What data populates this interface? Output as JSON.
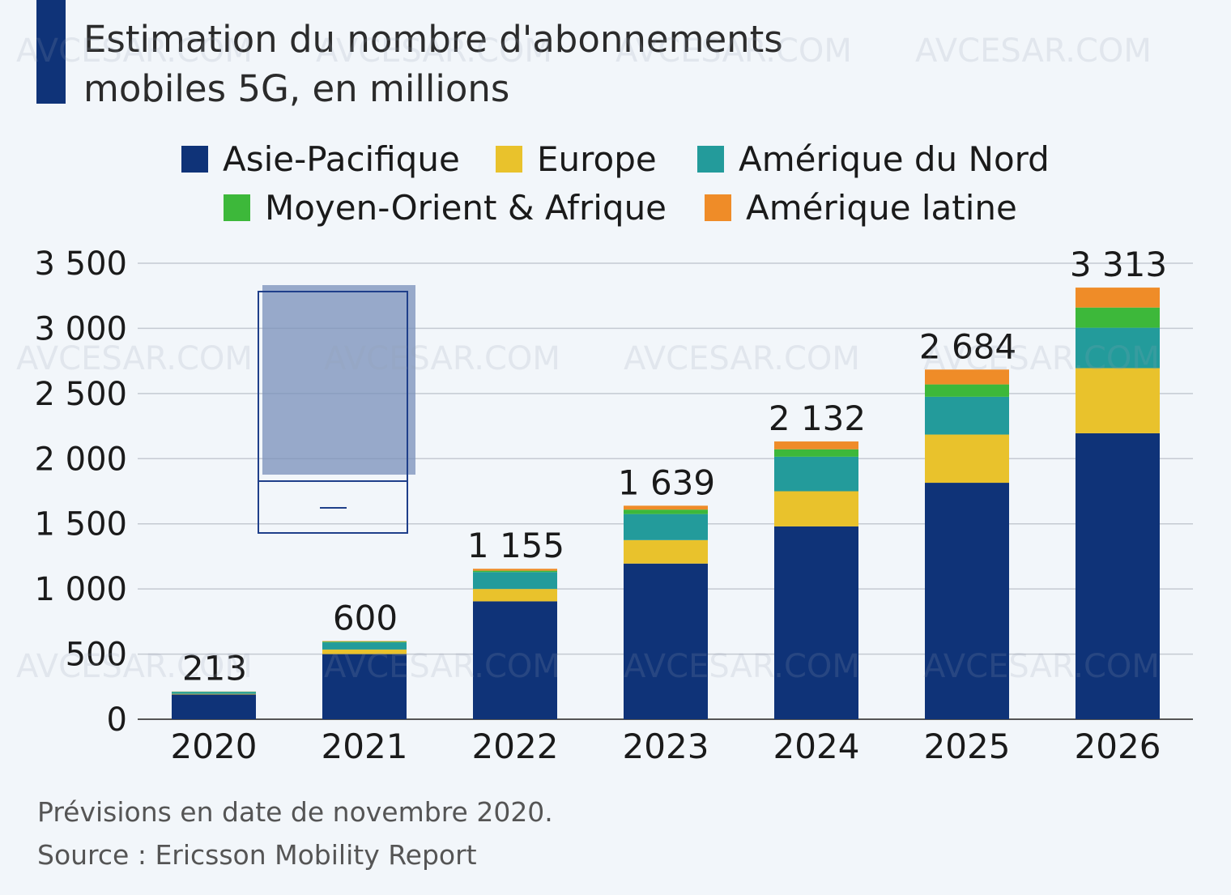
{
  "header": {
    "title_line1": "Estimation du nombre d'abonnements",
    "title_line2": "mobiles 5G, en millions"
  },
  "colors": {
    "title_bar": "#0f3378",
    "asia_pacific": "#0f3378",
    "europe": "#e9c22c",
    "north_america": "#239b9b",
    "mea": "#3db83a",
    "latin_america": "#ef8c28",
    "grid": "#c5cad2",
    "axis": "#555555"
  },
  "legend": [
    {
      "label": "Asie-Pacifique",
      "color": "#0f3378"
    },
    {
      "label": "Europe",
      "color": "#e9c22c"
    },
    {
      "label": "Amérique du Nord",
      "color": "#239b9b"
    },
    {
      "label": "Moyen-Orient & Afrique",
      "color": "#3db83a"
    },
    {
      "label": "Amérique latine",
      "color": "#ef8c28"
    }
  ],
  "chart_data": {
    "type": "bar",
    "stacked": true,
    "title": "Estimation du nombre d'abonnements mobiles 5G, en millions",
    "xlabel": "",
    "ylabel": "",
    "categories": [
      "2020",
      "2021",
      "2022",
      "2023",
      "2024",
      "2025",
      "2026"
    ],
    "ylim": [
      0,
      3500
    ],
    "yticks": [
      0,
      500,
      1000,
      1500,
      2000,
      2500,
      3000,
      3500
    ],
    "ytick_labels": [
      "0",
      "500",
      "1 000",
      "1 500",
      "2 000",
      "2 500",
      "3 000",
      "3 500"
    ],
    "grid": true,
    "series": [
      {
        "name": "Asie-Pacifique",
        "color": "#0f3378",
        "values": [
          190,
          500,
          905,
          1195,
          1480,
          1815,
          2195
        ]
      },
      {
        "name": "Europe",
        "color": "#e9c22c",
        "values": [
          5,
          35,
          95,
          180,
          270,
          370,
          500
        ]
      },
      {
        "name": "Amérique du Nord",
        "color": "#239b9b",
        "values": [
          15,
          55,
          130,
          200,
          265,
          290,
          310
        ]
      },
      {
        "name": "Moyen-Orient & Afrique",
        "color": "#3db83a",
        "values": [
          2,
          6,
          10,
          34,
          57,
          95,
          155
        ]
      },
      {
        "name": "Amérique latine",
        "color": "#ef8c28",
        "values": [
          1,
          4,
          15,
          30,
          60,
          114,
          153
        ]
      }
    ],
    "totals": [
      213,
      600,
      1155,
      1639,
      2132,
      2684,
      3313
    ],
    "total_labels": [
      "213",
      "600",
      "1 155",
      "1 639",
      "2 132",
      "2 684",
      "3 313"
    ]
  },
  "footer": {
    "note": "Prévisions en date de novembre 2020.",
    "source": "Source : Ericsson Mobility Report"
  },
  "watermark_text": "AVCESAR.COM"
}
